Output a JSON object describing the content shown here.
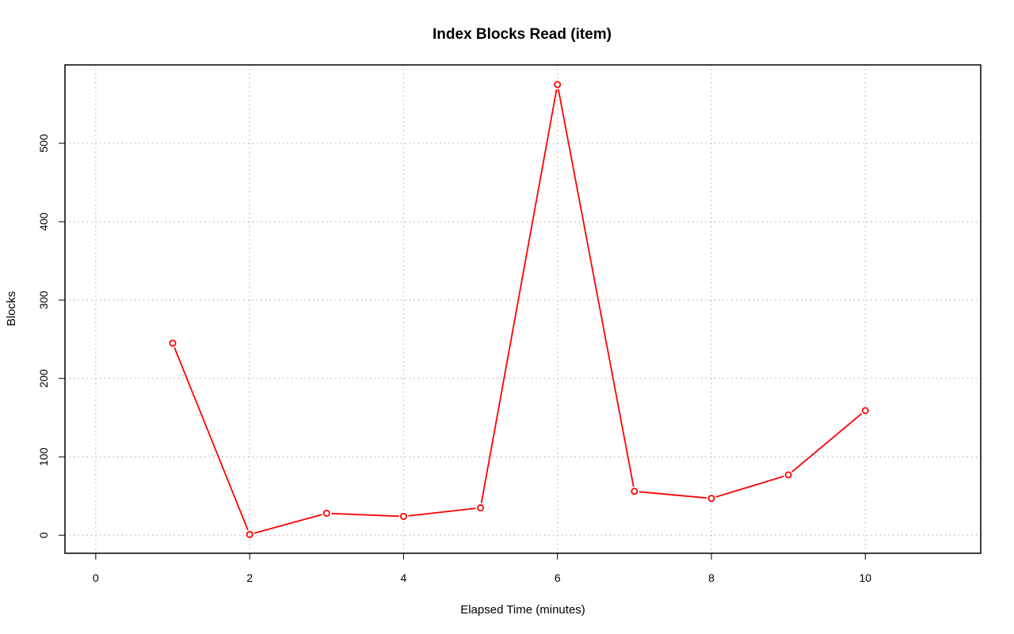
{
  "chart_data": {
    "type": "line",
    "title": "Index Blocks Read (item)",
    "xlabel": "Elapsed Time (minutes)",
    "ylabel": "Blocks",
    "xlim": [
      -0.4,
      11.5
    ],
    "ylim": [
      -23,
      600
    ],
    "xticks": [
      0,
      2,
      4,
      6,
      8,
      10
    ],
    "yticks": [
      0,
      100,
      200,
      300,
      400,
      500
    ],
    "grid": true,
    "line_color": "#ff0000",
    "grid_color": "#bebebe",
    "series": [
      {
        "x": [
          1,
          2,
          3,
          4,
          5,
          6,
          7,
          8,
          9,
          10
        ],
        "values": [
          245,
          1,
          28,
          24,
          35,
          575,
          56,
          47,
          77,
          159
        ]
      }
    ]
  }
}
